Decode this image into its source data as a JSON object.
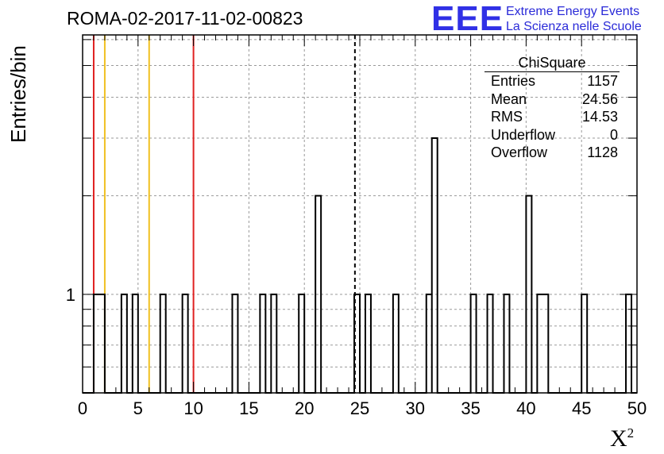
{
  "chart_data": {
    "type": "bar",
    "title": "ROMA-02-2017-11-02-00823",
    "xlabel": "X",
    "xlabel_sup": "2",
    "ylabel": "Entries/bin",
    "xlim": [
      0,
      50
    ],
    "ylim_log": [
      0.5,
      6.2
    ],
    "y_scale": "log",
    "grid": true,
    "xticks": [
      "0",
      "5",
      "10",
      "15",
      "20",
      "25",
      "30",
      "35",
      "40",
      "45",
      "50"
    ],
    "ytick_label": "1",
    "histogram_bins": [
      {
        "x0": 1.0,
        "x1": 2.0,
        "count": 1
      },
      {
        "x0": 3.5,
        "x1": 4.0,
        "count": 1
      },
      {
        "x0": 4.5,
        "x1": 5.0,
        "count": 1
      },
      {
        "x0": 7.0,
        "x1": 7.5,
        "count": 1
      },
      {
        "x0": 9.0,
        "x1": 9.5,
        "count": 1
      },
      {
        "x0": 13.5,
        "x1": 14.0,
        "count": 1
      },
      {
        "x0": 16.0,
        "x1": 16.5,
        "count": 1
      },
      {
        "x0": 17.0,
        "x1": 17.5,
        "count": 1
      },
      {
        "x0": 19.5,
        "x1": 20.0,
        "count": 1
      },
      {
        "x0": 21.0,
        "x1": 21.5,
        "count": 2
      },
      {
        "x0": 24.5,
        "x1": 25.0,
        "count": 1
      },
      {
        "x0": 25.5,
        "x1": 26.0,
        "count": 1
      },
      {
        "x0": 28.0,
        "x1": 28.5,
        "count": 1
      },
      {
        "x0": 31.0,
        "x1": 31.5,
        "count": 1
      },
      {
        "x0": 31.5,
        "x1": 32.0,
        "count": 3
      },
      {
        "x0": 35.0,
        "x1": 35.5,
        "count": 1
      },
      {
        "x0": 36.5,
        "x1": 37.0,
        "count": 1
      },
      {
        "x0": 38.0,
        "x1": 38.5,
        "count": 1
      },
      {
        "x0": 40.0,
        "x1": 40.5,
        "count": 2
      },
      {
        "x0": 41.0,
        "x1": 42.0,
        "count": 1
      },
      {
        "x0": 45.0,
        "x1": 45.5,
        "count": 1
      },
      {
        "x0": 49.0,
        "x1": 49.5,
        "count": 1
      }
    ],
    "vertical_lines": [
      {
        "x": 1.0,
        "color": "#e02020",
        "style": "solid"
      },
      {
        "x": 2.0,
        "color": "#f0c020",
        "style": "solid"
      },
      {
        "x": 6.0,
        "color": "#f0c020",
        "style": "solid"
      },
      {
        "x": 10.0,
        "color": "#e02020",
        "style": "solid"
      },
      {
        "x": 24.56,
        "color": "#000000",
        "style": "dashed"
      }
    ]
  },
  "stats_box": {
    "title": "ChiSquare",
    "rows": [
      {
        "label": "Entries",
        "value": "1157"
      },
      {
        "label": "Mean",
        "value": "24.56"
      },
      {
        "label": "RMS",
        "value": "14.53"
      },
      {
        "label": "Underflow",
        "value": "0"
      },
      {
        "label": "Overflow",
        "value": "1128"
      }
    ]
  },
  "logo": {
    "mark": "EEE",
    "line1": "Extreme Energy Events",
    "line2": "La Scienza nelle Scuole",
    "color": "#3030e6"
  }
}
